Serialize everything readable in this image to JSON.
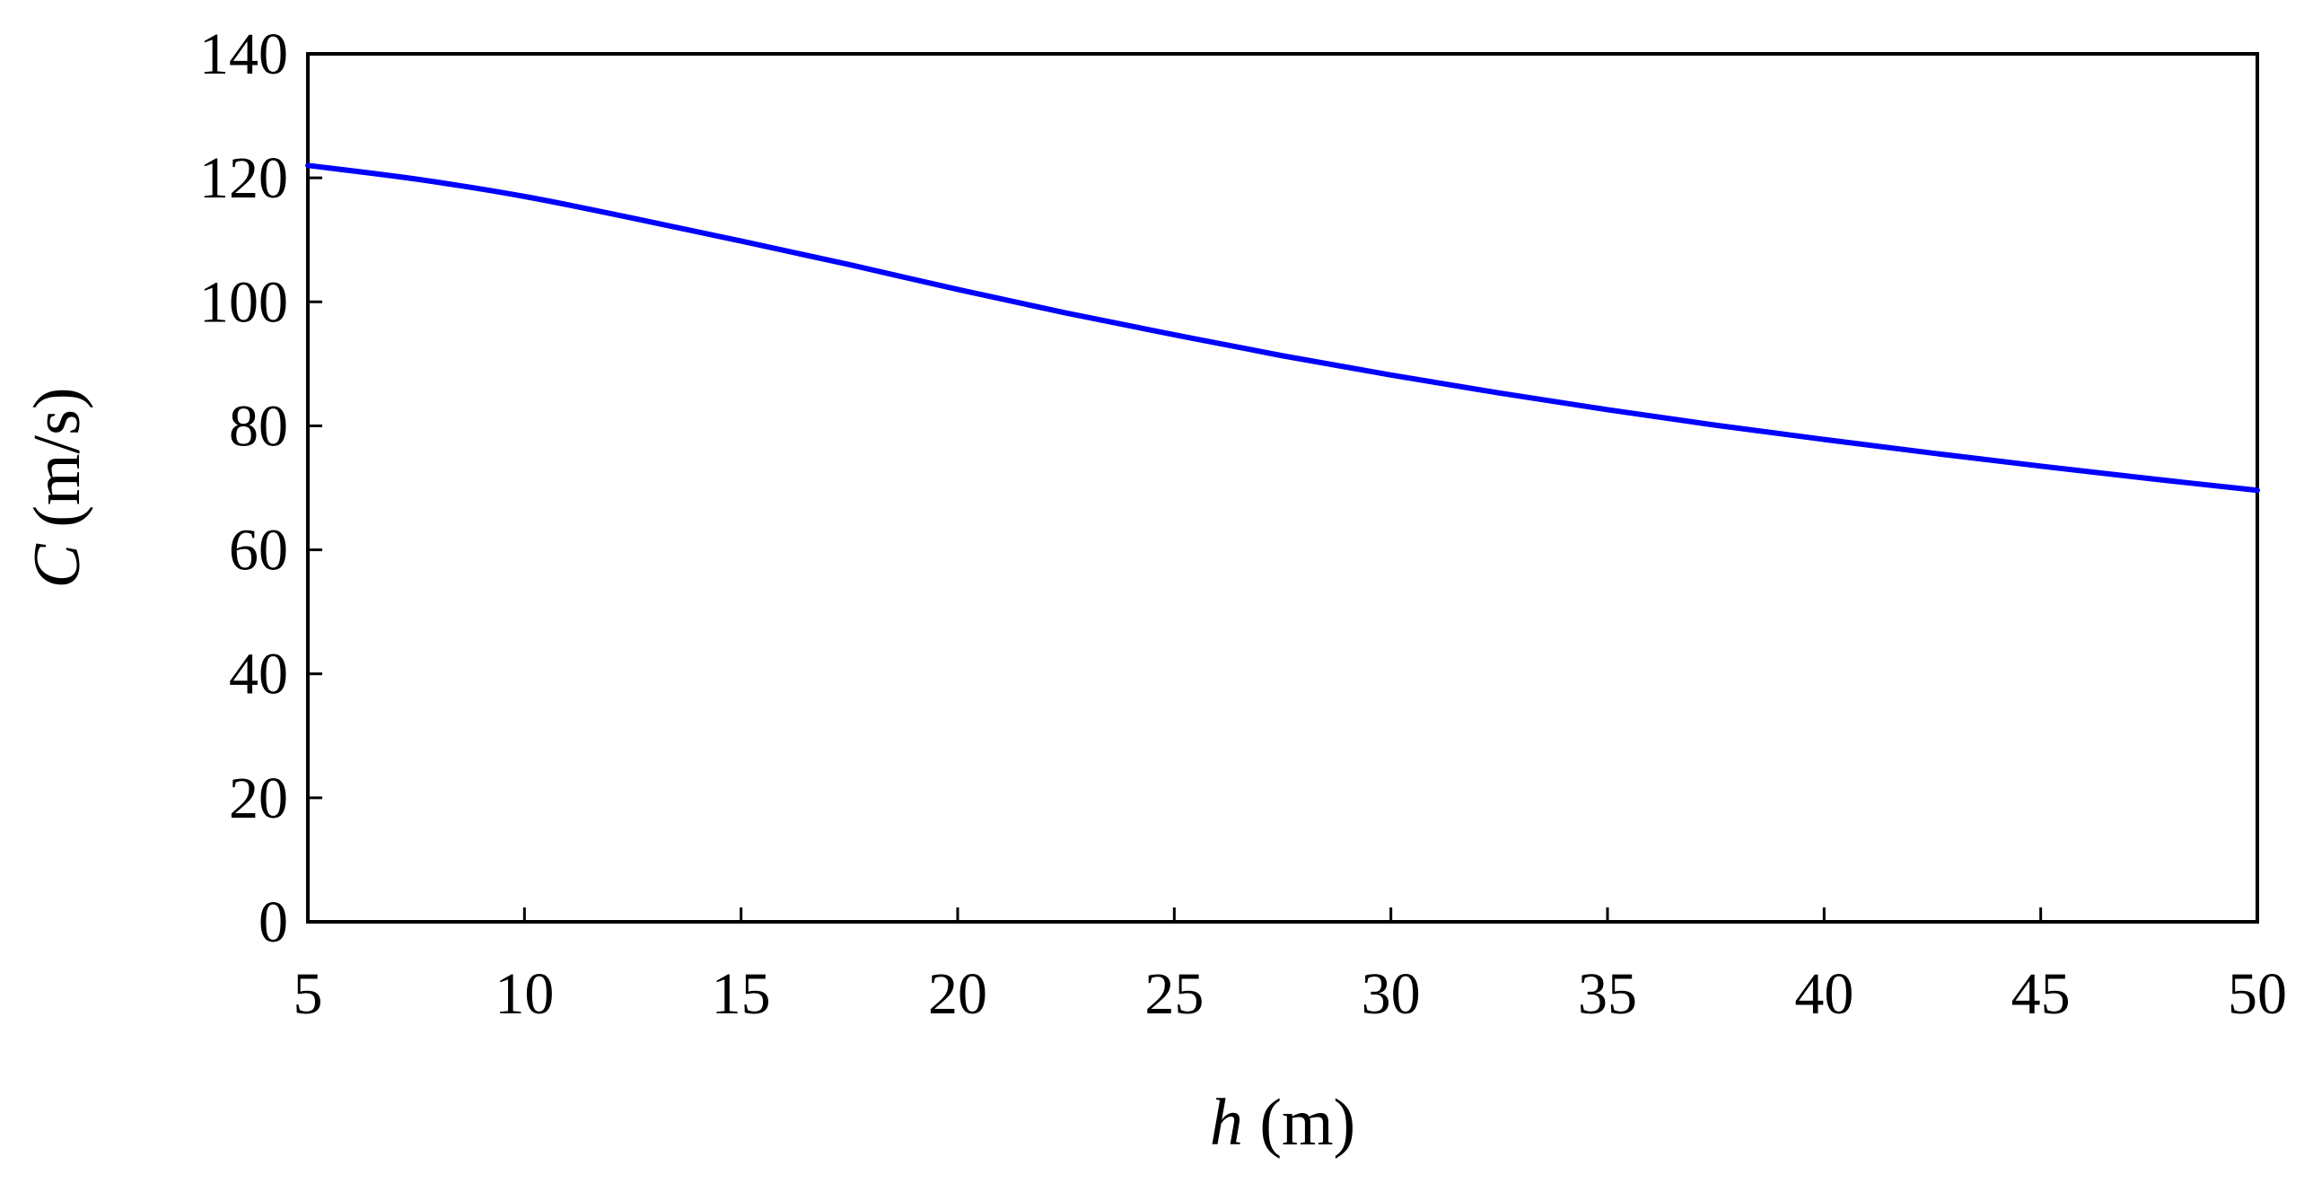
{
  "chart_data": {
    "type": "line",
    "title": "",
    "xlabel_var": "h",
    "xlabel_unit": " (m)",
    "ylabel_var": "C",
    "ylabel_unit": " (m/s)",
    "xlim": [
      5,
      50
    ],
    "ylim": [
      0,
      140
    ],
    "xticks": [
      "5",
      "10",
      "15",
      "20",
      "25",
      "30",
      "35",
      "40",
      "45",
      "50"
    ],
    "yticks": [
      "0",
      "20",
      "40",
      "60",
      "80",
      "100",
      "120",
      "140"
    ],
    "grid": false,
    "legend": "none",
    "series": [
      {
        "color": "#0000ff",
        "x": [
          5,
          7.5,
          10,
          12.5,
          15,
          17.5,
          20,
          22.5,
          25,
          27.5,
          30,
          32.5,
          35,
          37.5,
          40,
          42.5,
          45,
          47.5,
          50
        ],
        "y": [
          122,
          119.8,
          117,
          113.5,
          109.8,
          106,
          102,
          98.2,
          94.7,
          91.3,
          88.2,
          85.3,
          82.6,
          80.1,
          77.8,
          75.6,
          73.5,
          71.5,
          69.6
        ]
      }
    ]
  }
}
